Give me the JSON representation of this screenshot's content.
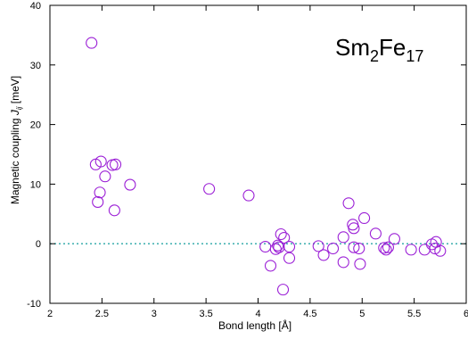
{
  "chart_data": {
    "type": "scatter",
    "title": "",
    "xlabel": "Bond length [Å]",
    "ylabel": {
      "prefix": "Magnetic coupling ",
      "symbol": "J",
      "subscript": "ij",
      "suffix": " [meV]"
    },
    "annotation": {
      "base1": "Sm",
      "sub1": "2",
      "base2": "Fe",
      "sub2": "17"
    },
    "xlim": [
      2,
      6
    ],
    "ylim": [
      -10,
      40
    ],
    "xticks": [
      2,
      2.5,
      3,
      3.5,
      4,
      4.5,
      5,
      5.5,
      6
    ],
    "xtick_labels": [
      "2",
      "2.5",
      "3",
      "3.5",
      "4",
      "4.5",
      "5",
      "5.5",
      "6"
    ],
    "yticks": [
      -10,
      0,
      10,
      20,
      30,
      40
    ],
    "ytick_labels": [
      "-10",
      "0",
      "10",
      "20",
      "30",
      "40"
    ],
    "marker": "open-circle",
    "marker_color": "#9b1fd6",
    "zero_line": {
      "y": 0,
      "style": "dotted",
      "color": "#2aa7a7"
    },
    "grid": false,
    "points": [
      [
        2.4,
        33.7
      ],
      [
        2.44,
        13.3
      ],
      [
        2.49,
        13.8
      ],
      [
        2.53,
        11.3
      ],
      [
        2.6,
        13.2
      ],
      [
        2.63,
        13.3
      ],
      [
        2.48,
        8.6
      ],
      [
        2.46,
        7.0
      ],
      [
        2.62,
        5.6
      ],
      [
        2.77,
        9.9
      ],
      [
        3.53,
        9.2
      ],
      [
        3.91,
        8.1
      ],
      [
        4.07,
        -0.5
      ],
      [
        4.12,
        -3.7
      ],
      [
        4.17,
        -0.9
      ],
      [
        4.19,
        -0.3
      ],
      [
        4.2,
        -0.6
      ],
      [
        4.22,
        1.6
      ],
      [
        4.25,
        1.0
      ],
      [
        4.24,
        -7.7
      ],
      [
        4.3,
        -0.5
      ],
      [
        4.3,
        -2.4
      ],
      [
        4.58,
        -0.4
      ],
      [
        4.63,
        -1.9
      ],
      [
        4.72,
        -0.8
      ],
      [
        4.82,
        -3.1
      ],
      [
        4.82,
        1.1
      ],
      [
        4.87,
        6.8
      ],
      [
        4.91,
        3.2
      ],
      [
        4.92,
        2.6
      ],
      [
        4.92,
        -0.6
      ],
      [
        4.97,
        -0.8
      ],
      [
        4.98,
        -3.4
      ],
      [
        5.02,
        4.3
      ],
      [
        5.13,
        1.7
      ],
      [
        5.21,
        -0.7
      ],
      [
        5.23,
        -1.0
      ],
      [
        5.25,
        -0.6
      ],
      [
        5.31,
        0.8
      ],
      [
        5.47,
        -1.0
      ],
      [
        5.6,
        -1.0
      ],
      [
        5.67,
        -0.1
      ],
      [
        5.7,
        -0.8
      ],
      [
        5.71,
        0.3
      ],
      [
        5.75,
        -1.2
      ]
    ]
  }
}
